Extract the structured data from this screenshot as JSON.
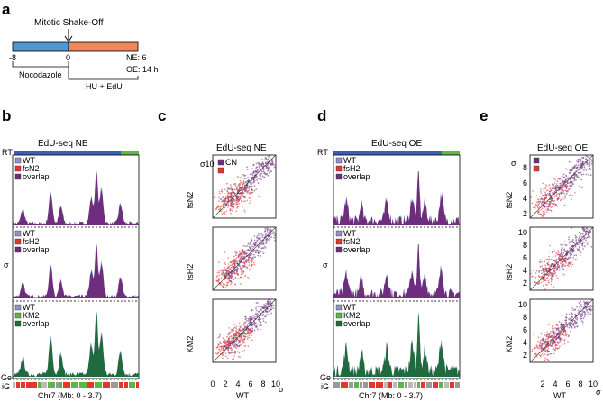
{
  "figure": {
    "panel_labels": [
      "a",
      "b",
      "c",
      "d",
      "e"
    ],
    "colors": {
      "blue": "#4f97d1",
      "orange": "#f08759",
      "purple": "#6e2e7d",
      "red": "#e2362f",
      "green_dark": "#1f6b3d",
      "green_light": "#5ab54b",
      "wt": "#8f93c9",
      "rt_blue": "#3b5fb8",
      "rt_green": "#58b947"
    }
  },
  "panel_a": {
    "event_label": "Mitotic Shake-Off",
    "ticks": [
      "-8",
      "0"
    ],
    "ne_label": "NE: 6",
    "oe_label": "OE: 14 h",
    "left_bracket_label": "Nocodazole",
    "right_bracket_label": "HU + EdU"
  },
  "panel_b": {
    "title": "EdU-seq NE",
    "rt_label": "RT",
    "y_label": "σ",
    "ge_label": "Ge",
    "ig_label": "iG",
    "x_label": "Chr7 (Mb: 0 - 3.7)",
    "tracks": [
      {
        "legend": [
          "WT",
          "fsN2",
          "overlap"
        ]
      },
      {
        "legend": [
          "WT",
          "fsH2",
          "overlap"
        ]
      },
      {
        "legend": [
          "WT",
          "KM2",
          "overlap"
        ]
      }
    ]
  },
  "panel_c": {
    "title": "EdU-seq NE",
    "top_tick": "10",
    "legend": [
      "CN",
      ""
    ],
    "y_labels": [
      "fsN2",
      "fsH2",
      "KM2"
    ],
    "x_ticks": [
      "0",
      "2",
      "4",
      "6",
      "8",
      "10"
    ],
    "x_label": "WT",
    "sigma": "σ",
    "y_ticks_shown": [
      "σ10"
    ]
  },
  "panel_d": {
    "title": "EdU-seq OE",
    "rt_label": "RT",
    "y_label": "σ",
    "ge_label": "Ge",
    "ig_label": "iG",
    "x_label": "Chr7 (Mb: 0 - 3.7)",
    "tracks": [
      {
        "legend": [
          "WT",
          "fsH2",
          "overlap"
        ]
      },
      {
        "legend": [
          "WT",
          "fsN2",
          "overlap"
        ]
      },
      {
        "legend": [
          "WT",
          "KM2",
          "overlap"
        ]
      }
    ]
  },
  "panel_e": {
    "title": "EdU-seq OE",
    "y_labels": [
      "fsN2",
      "fsH2",
      "KM2"
    ],
    "y_ticks_top": [
      "2",
      "4",
      "6",
      "8"
    ],
    "y_ticks": [
      "2",
      "4",
      "6",
      "8",
      "10"
    ],
    "x_ticks": [
      "2",
      "4",
      "6",
      "8",
      "10"
    ],
    "x_label": "WT",
    "sigma_top": "σ",
    "sigma": "σ"
  },
  "chart_data": [
    {
      "type": "area",
      "title": "EdU-seq NE",
      "xlabel": "Chr7 (Mb: 0 - 3.7)",
      "ylabel": "σ",
      "series": [
        {
          "name": "WT"
        },
        {
          "name": "fsN2"
        },
        {
          "name": "fsH2"
        },
        {
          "name": "KM2"
        },
        {
          "name": "overlap"
        }
      ]
    },
    {
      "type": "scatter",
      "title": "EdU-seq NE",
      "xlabel": "WT",
      "ylabel": "fsN2 / fsH2 / KM2",
      "xlim": [
        0,
        10
      ],
      "ylim": [
        0,
        10
      ]
    },
    {
      "type": "area",
      "title": "EdU-seq OE",
      "xlabel": "Chr7 (Mb: 0 - 3.7)",
      "ylabel": "σ",
      "series": [
        {
          "name": "WT"
        },
        {
          "name": "fsH2"
        },
        {
          "name": "fsN2"
        },
        {
          "name": "KM2"
        },
        {
          "name": "overlap"
        }
      ]
    },
    {
      "type": "scatter",
      "title": "EdU-seq OE",
      "xlabel": "WT",
      "ylabel": "fsN2 / fsH2 / KM2",
      "xlim": [
        0,
        10
      ],
      "ylim": [
        0,
        10
      ]
    }
  ]
}
